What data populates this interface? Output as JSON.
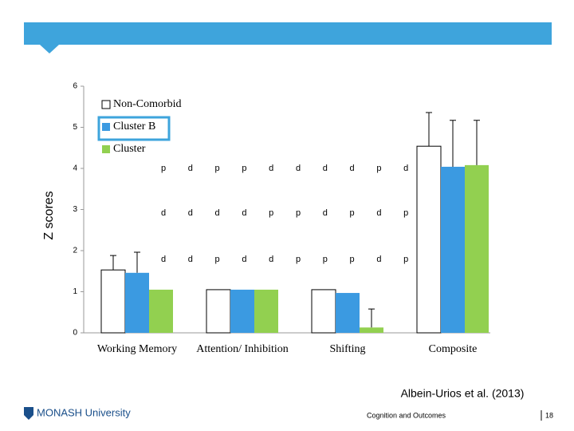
{
  "chart_data": {
    "type": "bar",
    "y_label": "Z scores",
    "categories": [
      "Working Memory",
      "Attention/ Inhibition",
      "Shifting",
      "Composite"
    ],
    "series": [
      {
        "name": "Non-Comorbid",
        "color": "#ffffff",
        "values": [
          1.53,
          1.05,
          1.05,
          4.54
        ],
        "errors": [
          0.35,
          null,
          null,
          0.82
        ]
      },
      {
        "name": "Cluster B",
        "color": "#3b9ae1",
        "values": [
          1.46,
          1.05,
          0.97,
          4.04
        ],
        "errors": [
          0.5,
          null,
          null,
          1.13
        ]
      },
      {
        "name": "Cluster",
        "color": "#92d050",
        "values": [
          1.05,
          1.05,
          0.13,
          4.08
        ],
        "errors": [
          null,
          null,
          0.45,
          1.09
        ]
      }
    ],
    "ylim": [
      0,
      6
    ],
    "yticks": [
      0,
      1,
      2,
      3,
      4,
      5,
      6
    ],
    "annotations": [
      [
        "p",
        "d",
        "p",
        "p",
        "d",
        "d",
        "d",
        "d",
        "p",
        "d"
      ],
      [
        "d",
        "d",
        "d",
        "d",
        "p",
        "p",
        "d",
        "p",
        "d",
        "p"
      ],
      [
        "d",
        "d",
        "p",
        "d",
        "d",
        "p",
        "p",
        "p",
        "d",
        "p"
      ]
    ]
  },
  "footer": {
    "citation": "Albein-Urios et al. (2013)",
    "logo": "MONASH University",
    "section": "Cognition and Outcomes",
    "page": "18"
  }
}
